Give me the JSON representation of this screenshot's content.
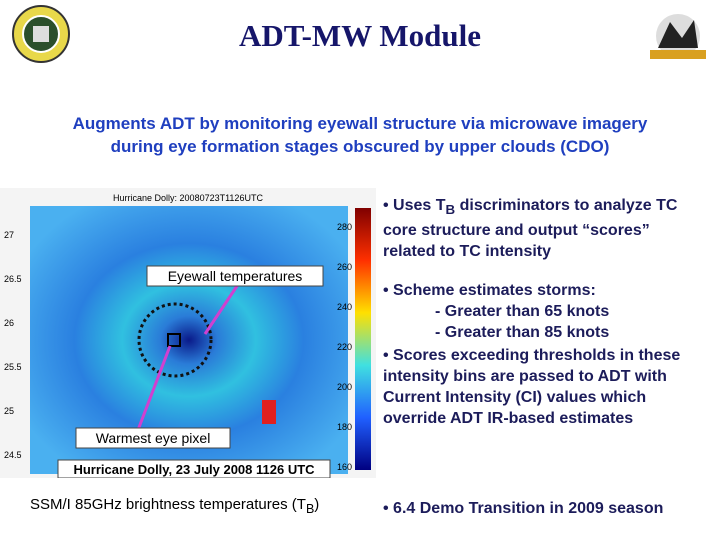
{
  "header": {
    "title": "ADT-MW Module",
    "subtitle": [
      "Augments ADT by monitoring eyewall structure via microwave imagery",
      "during eye formation stages obscured by upper clouds (CDO)"
    ]
  },
  "figure": {
    "plot_title": "Hurricane Dolly: 20080723T1126UTC",
    "lat_ticks": [
      "27",
      "26.5",
      "26",
      "25.5",
      "25",
      "24.5"
    ],
    "colorbar_ticks": [
      "280",
      "260",
      "240",
      "220",
      "200",
      "180",
      "160"
    ],
    "annotations": {
      "eyewall": "Eyewall temperatures",
      "eye": "Warmest eye pixel",
      "date": "Hurricane Dolly, 23 July 2008 1126 UTC"
    },
    "caption": {
      "text": "SSM/I 85GHz brightness temperatures (T",
      "sub": "B",
      "end": ")"
    }
  },
  "bullets": [
    {
      "text": "• Uses T",
      "sub": "B",
      "end": " discriminators to analyze TC core structure and output “scores” related to TC intensity"
    },
    {
      "text": "• Scheme estimates storms:",
      "items": [
        "- Greater than 65 knots",
        "- Greater than 85 knots"
      ]
    },
    {
      "text": "• Scores exceeding thresholds in these intensity bins are passed to ADT with Current Intensity (CI) values which override ADT IR-based estimates"
    },
    {
      "text": "• 6.4 Demo Transition in 2009 season"
    }
  ]
}
